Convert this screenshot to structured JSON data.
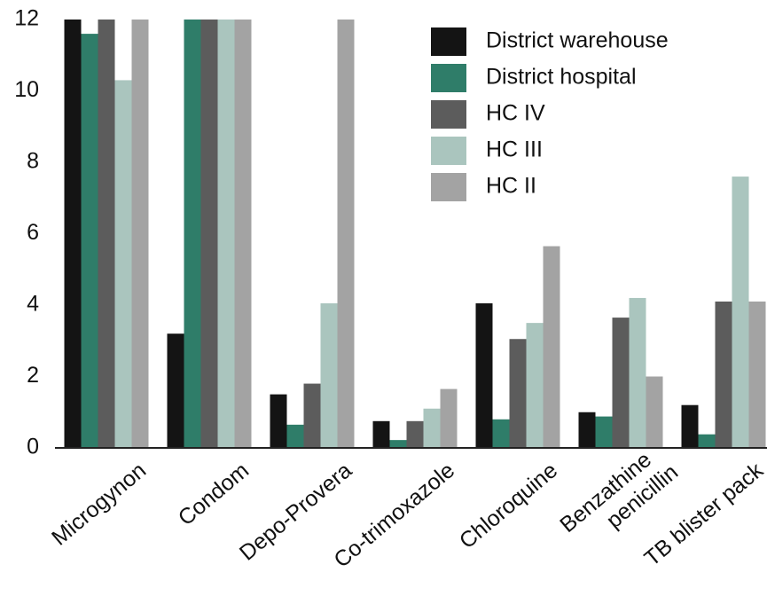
{
  "chart_data": {
    "type": "bar",
    "categories": [
      "Microgynon",
      "Condom",
      "Depo-Provera",
      "Co-trimoxazole",
      "Chloroquine",
      "Benzathine penicillin",
      "TB blister pack"
    ],
    "series": [
      {
        "name": "District warehouse",
        "color": "#141414",
        "values": [
          12,
          3.2,
          1.5,
          0.75,
          4.05,
          1.0,
          1.2
        ]
      },
      {
        "name": "District hospital",
        "color": "#2f7d69",
        "values": [
          11.6,
          12,
          0.65,
          0.22,
          0.8,
          0.88,
          0.38
        ]
      },
      {
        "name": "HC IV",
        "color": "#5c5c5c",
        "values": [
          12,
          12,
          1.8,
          0.75,
          3.05,
          3.65,
          4.1
        ]
      },
      {
        "name": "HC III",
        "color": "#aac5be",
        "values": [
          10.3,
          12,
          4.05,
          1.1,
          3.5,
          4.2,
          7.6
        ]
      },
      {
        "name": "HC II",
        "color": "#a3a3a3",
        "values": [
          12,
          12,
          12,
          1.65,
          5.65,
          2.0,
          4.1
        ]
      }
    ],
    "ylim": [
      0,
      12
    ],
    "yticks": [
      0,
      2,
      4,
      6,
      8,
      10,
      12
    ],
    "grid": false,
    "legend": "upper right"
  }
}
